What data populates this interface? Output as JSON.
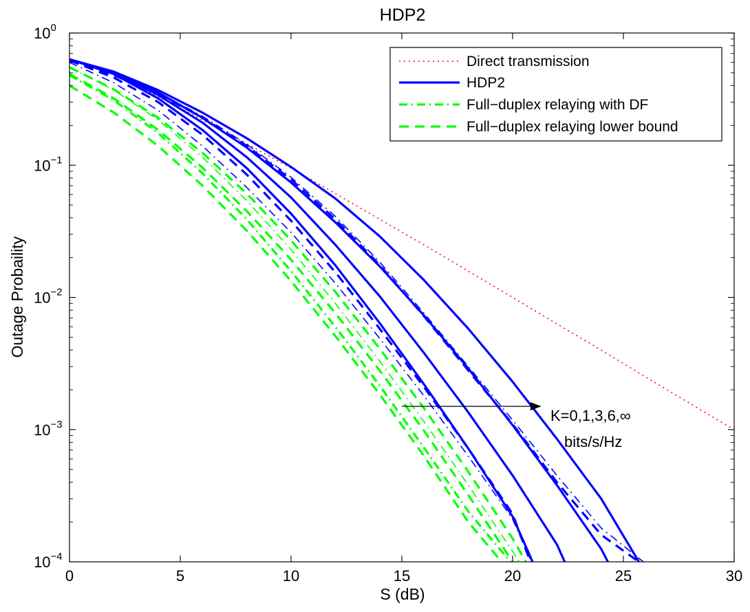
{
  "chart_data": {
    "type": "line",
    "title": "HDP2",
    "xlabel": "S (dB)",
    "ylabel": "Outage Probaility",
    "xlim": [
      0,
      30
    ],
    "ylim": [
      0.0001,
      1
    ],
    "yscale": "log",
    "x_ticks": [
      "0",
      "5",
      "10",
      "15",
      "20",
      "25",
      "30"
    ],
    "y_ticks": [
      {
        "base": "10",
        "exp": "0"
      },
      {
        "base": "10",
        "exp": "−1"
      },
      {
        "base": "10",
        "exp": "−2"
      },
      {
        "base": "10",
        "exp": "−3"
      },
      {
        "base": "10",
        "exp": "−4"
      }
    ],
    "grid": false,
    "legend_position": "top-right",
    "legend": [
      {
        "label": "Direct transmission",
        "style": "dotted",
        "color": "#ff0000"
      },
      {
        "label": "HDP2",
        "style": "solid",
        "color": "#0000ff"
      },
      {
        "label": "Full−duplex relaying with DF",
        "style": "dashdot",
        "color": "#00ff00"
      },
      {
        "label": "Full−duplex relaying lower bound",
        "style": "dashed",
        "color": "#00ff00"
      }
    ],
    "annotation": {
      "line1": "K=0,1,3,6,∞",
      "line2": "bits/s/Hz",
      "arrow_from": [
        15,
        0.0015
      ],
      "arrow_to": [
        21.3,
        0.0015
      ]
    },
    "series": [
      {
        "name": "Direct transmission",
        "style": "dotted",
        "color": "#ff0000",
        "width": 1.6,
        "points": [
          [
            0,
            0.632
          ],
          [
            2,
            0.49
          ],
          [
            4,
            0.33
          ],
          [
            6,
            0.22
          ],
          [
            8,
            0.145
          ],
          [
            10,
            0.095
          ],
          [
            12,
            0.061
          ],
          [
            14,
            0.039
          ],
          [
            16,
            0.025
          ],
          [
            18,
            0.0158
          ],
          [
            20,
            0.01
          ],
          [
            22,
            0.0063
          ],
          [
            24,
            0.004
          ],
          [
            26,
            0.0025
          ],
          [
            28,
            0.00158
          ],
          [
            29.9,
            0.00102
          ]
        ]
      },
      {
        "name": "HDP2",
        "style": "solid",
        "color": "#0000ff",
        "width": 3.2,
        "points": [
          [
            0,
            0.632
          ],
          [
            2,
            0.49
          ],
          [
            4,
            0.32
          ],
          [
            6,
            0.185
          ],
          [
            8,
            0.095
          ],
          [
            10,
            0.043
          ],
          [
            12,
            0.0175
          ],
          [
            14,
            0.0064
          ],
          [
            16,
            0.0022
          ],
          [
            18,
            0.00072
          ],
          [
            20,
            0.00022
          ],
          [
            20.9,
            0.0001
          ]
        ]
      },
      {
        "style": "solid",
        "color": "#0000ff",
        "width": 3.2,
        "points": [
          [
            0,
            0.632
          ],
          [
            2,
            0.5
          ],
          [
            4,
            0.34
          ],
          [
            6,
            0.21
          ],
          [
            8,
            0.115
          ],
          [
            10,
            0.057
          ],
          [
            12,
            0.025
          ],
          [
            14,
            0.0102
          ],
          [
            16,
            0.0038
          ],
          [
            18,
            0.00135
          ],
          [
            20,
            0.00045
          ],
          [
            22,
            0.000135
          ],
          [
            22.35,
            0.0001
          ]
        ]
      },
      {
        "style": "solid",
        "color": "#0000ff",
        "width": 3.2,
        "points": [
          [
            0,
            0.632
          ],
          [
            2,
            0.505
          ],
          [
            4,
            0.355
          ],
          [
            6,
            0.228
          ],
          [
            8,
            0.136
          ],
          [
            10,
            0.074
          ],
          [
            12,
            0.037
          ],
          [
            14,
            0.0172
          ],
          [
            16,
            0.0073
          ],
          [
            18,
            0.0029
          ],
          [
            20,
            0.00108
          ],
          [
            22,
            0.00038
          ],
          [
            24,
            0.000125
          ],
          [
            24.3,
            0.0001
          ]
        ]
      },
      {
        "style": "solid",
        "color": "#0000ff",
        "width": 3.2,
        "points": [
          [
            0,
            0.632
          ],
          [
            2,
            0.51
          ],
          [
            4,
            0.37
          ],
          [
            6,
            0.25
          ],
          [
            8,
            0.16
          ],
          [
            10,
            0.097
          ],
          [
            12,
            0.056
          ],
          [
            14,
            0.029
          ],
          [
            16,
            0.0135
          ],
          [
            18,
            0.0058
          ],
          [
            20,
            0.0023
          ],
          [
            22,
            0.00085
          ],
          [
            24,
            0.0003
          ],
          [
            25.7,
            0.0001
          ]
        ]
      },
      {
        "style": "dashed",
        "color": "#0000ff",
        "width": 3.2,
        "points": [
          [
            0,
            0.62
          ],
          [
            2,
            0.46
          ],
          [
            4,
            0.3
          ],
          [
            6,
            0.17
          ],
          [
            8,
            0.085
          ],
          [
            10,
            0.038
          ],
          [
            12,
            0.0155
          ],
          [
            14,
            0.0058
          ],
          [
            16,
            0.0021
          ],
          [
            18,
            0.00072
          ],
          [
            20,
            0.00023
          ],
          [
            20.8,
            0.0001
          ]
        ]
      },
      {
        "style": "dashed",
        "color": "#0000ff",
        "width": 3.2,
        "points": [
          [
            0,
            0.625
          ],
          [
            2,
            0.48
          ],
          [
            4,
            0.345
          ],
          [
            6,
            0.23
          ],
          [
            8,
            0.14
          ],
          [
            10,
            0.078
          ],
          [
            12,
            0.039
          ],
          [
            14,
            0.0176
          ],
          [
            16,
            0.0072
          ],
          [
            18,
            0.0028
          ],
          [
            20,
            0.0011
          ],
          [
            22,
            0.0004
          ],
          [
            24,
            0.00016
          ],
          [
            25.7,
            0.0001
          ]
        ]
      },
      {
        "style": "dashdot",
        "color": "#0000ff",
        "width": 1.6,
        "points": [
          [
            0,
            0.625
          ],
          [
            2,
            0.49
          ],
          [
            4,
            0.355
          ],
          [
            6,
            0.235
          ],
          [
            8,
            0.144
          ],
          [
            10,
            0.081
          ],
          [
            12,
            0.041
          ],
          [
            14,
            0.0185
          ],
          [
            16,
            0.0076
          ],
          [
            18,
            0.003
          ],
          [
            20,
            0.00118
          ],
          [
            22,
            0.00045
          ],
          [
            24,
            0.00018
          ],
          [
            25.9,
            0.0001
          ]
        ]
      },
      {
        "style": "dashdot",
        "color": "#0000ff",
        "width": 1.6,
        "points": [
          [
            0,
            0.6
          ],
          [
            2,
            0.42
          ],
          [
            4,
            0.26
          ],
          [
            6,
            0.14
          ],
          [
            8,
            0.068
          ],
          [
            10,
            0.031
          ],
          [
            12,
            0.0128
          ],
          [
            14,
            0.0049
          ],
          [
            16,
            0.0018
          ],
          [
            18,
            0.00063
          ],
          [
            20,
            0.00021
          ],
          [
            20.85,
            0.0001
          ]
        ]
      },
      {
        "name": "Full−duplex relaying with DF",
        "style": "dashdot",
        "color": "#00ff00",
        "width": 3.2,
        "points": [
          [
            0,
            0.48
          ],
          [
            2,
            0.31
          ],
          [
            4,
            0.175
          ],
          [
            6,
            0.087
          ],
          [
            8,
            0.039
          ],
          [
            10,
            0.0158
          ],
          [
            12,
            0.006
          ],
          [
            14,
            0.00215
          ],
          [
            16,
            0.00073
          ],
          [
            18,
            0.00024
          ],
          [
            19.9,
            0.0001
          ]
        ]
      },
      {
        "style": "dashdot",
        "color": "#00ff00",
        "width": 1.6,
        "points": [
          [
            0,
            0.55
          ],
          [
            2,
            0.37
          ],
          [
            4,
            0.22
          ],
          [
            6,
            0.115
          ],
          [
            8,
            0.054
          ],
          [
            10,
            0.023
          ],
          [
            12,
            0.009
          ],
          [
            14,
            0.0033
          ],
          [
            16,
            0.00115
          ],
          [
            18,
            0.00038
          ],
          [
            20,
            0.00012
          ],
          [
            20.3,
            0.0001
          ]
        ]
      },
      {
        "name": "Full−duplex relaying lower bound",
        "style": "dashed",
        "color": "#00ff00",
        "width": 3.2,
        "points": [
          [
            0,
            0.4
          ],
          [
            2,
            0.25
          ],
          [
            4,
            0.14
          ],
          [
            6,
            0.07
          ],
          [
            8,
            0.032
          ],
          [
            10,
            0.0133
          ],
          [
            12,
            0.0051
          ],
          [
            14,
            0.00185
          ],
          [
            16,
            0.00063
          ],
          [
            18,
            0.0002
          ],
          [
            19.5,
            0.0001
          ]
        ]
      },
      {
        "style": "dashed",
        "color": "#00ff00",
        "width": 3.2,
        "points": [
          [
            0,
            0.49
          ],
          [
            2,
            0.32
          ],
          [
            4,
            0.185
          ],
          [
            6,
            0.096
          ],
          [
            8,
            0.045
          ],
          [
            10,
            0.0193
          ],
          [
            12,
            0.0076
          ],
          [
            14,
            0.0028
          ],
          [
            16,
            0.00098
          ],
          [
            18,
            0.00032
          ],
          [
            20,
            0.0001
          ]
        ]
      },
      {
        "style": "dashed",
        "color": "#00ff00",
        "width": 3.2,
        "points": [
          [
            0,
            0.55
          ],
          [
            2,
            0.375
          ],
          [
            4,
            0.228
          ],
          [
            6,
            0.124
          ],
          [
            8,
            0.061
          ],
          [
            10,
            0.027
          ],
          [
            12,
            0.011
          ],
          [
            14,
            0.0041
          ],
          [
            16,
            0.00145
          ],
          [
            18,
            0.00048
          ],
          [
            20,
            0.00015
          ],
          [
            20.6,
            0.0001
          ]
        ]
      }
    ]
  }
}
